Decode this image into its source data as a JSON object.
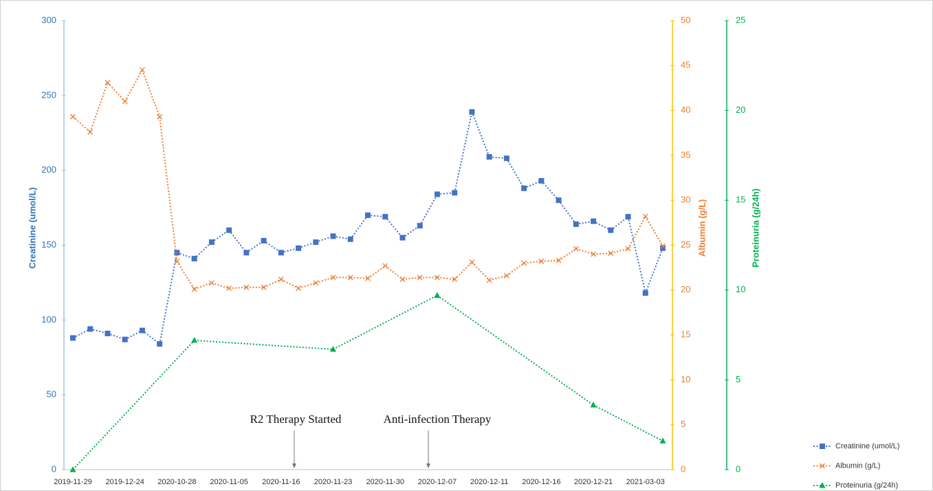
{
  "chart_data": {
    "type": "line",
    "categories": [
      "2019-11-29",
      null,
      null,
      "2019-12-24",
      null,
      null,
      "2020-10-28",
      null,
      null,
      "2020-11-05",
      null,
      null,
      "2020-11-16",
      null,
      null,
      "2020-11-23",
      null,
      null,
      "2020-11-30",
      null,
      null,
      "2020-12-07",
      null,
      null,
      "2020-12-11",
      null,
      null,
      "2020-12-16",
      null,
      null,
      "2020-12-21",
      null,
      null,
      "2021-03-03",
      null
    ],
    "ylabel": "Creatinine (umol/L)",
    "y2label": "Albumin (g/L)",
    "y3label": "Proteinuria (g/24h)",
    "ylim": [
      0,
      300
    ],
    "yticks": [
      0,
      50,
      100,
      150,
      200,
      250,
      300
    ],
    "y2lim": [
      0,
      50
    ],
    "y2ticks": [
      0,
      5,
      10,
      15,
      20,
      25,
      30,
      35,
      40,
      45,
      50
    ],
    "y3lim": [
      0,
      25
    ],
    "y3ticks": [
      0,
      5,
      10,
      15,
      20,
      25
    ],
    "series": [
      {
        "name": "Creatinine (umol/L)",
        "color": "#4472c4",
        "marker": "square",
        "axis": "y",
        "values": [
          88,
          94,
          91,
          87,
          93,
          84,
          145,
          141,
          152,
          160,
          145,
          153,
          145,
          148,
          152,
          156,
          154,
          170,
          169,
          155,
          163,
          184,
          185,
          239,
          209,
          208,
          188,
          193,
          180,
          164,
          166,
          160,
          169,
          118,
          148
        ]
      },
      {
        "name": "Albumin (g/L)",
        "color": "#ed7d31",
        "marker": "cross",
        "axis": "y2",
        "values": [
          39.3,
          37.6,
          43.1,
          41,
          44.5,
          39.3,
          23.2,
          20.1,
          20.8,
          20.2,
          20.3,
          20.3,
          21.2,
          20.2,
          20.8,
          21.4,
          21.4,
          21.3,
          22.7,
          21.2,
          21.4,
          21.4,
          21.2,
          23.1,
          21.1,
          21.6,
          23,
          23.2,
          23.3,
          24.6,
          24,
          24.1,
          24.6,
          28.2,
          24.9
        ]
      },
      {
        "name": "Proteinuria (g/24h)",
        "color": "#00b050",
        "marker": "triangle",
        "axis": "y3",
        "values": [
          0,
          null,
          null,
          null,
          null,
          null,
          null,
          7.2,
          null,
          null,
          null,
          null,
          null,
          null,
          null,
          6.7,
          null,
          null,
          null,
          null,
          null,
          9.7,
          null,
          null,
          null,
          null,
          null,
          null,
          null,
          null,
          3.6,
          null,
          null,
          null,
          1.6
        ]
      }
    ],
    "annotations": [
      "R2 Therapy Started",
      "Anti-infection Therapy"
    ],
    "axis_colors": {
      "y": "#9dc3e6",
      "y2": "#ffc000",
      "y3": "#00b050"
    },
    "label_colors": {
      "y": "#2e75b6",
      "y2": "#ed7d31",
      "y3": "#00b050"
    }
  }
}
